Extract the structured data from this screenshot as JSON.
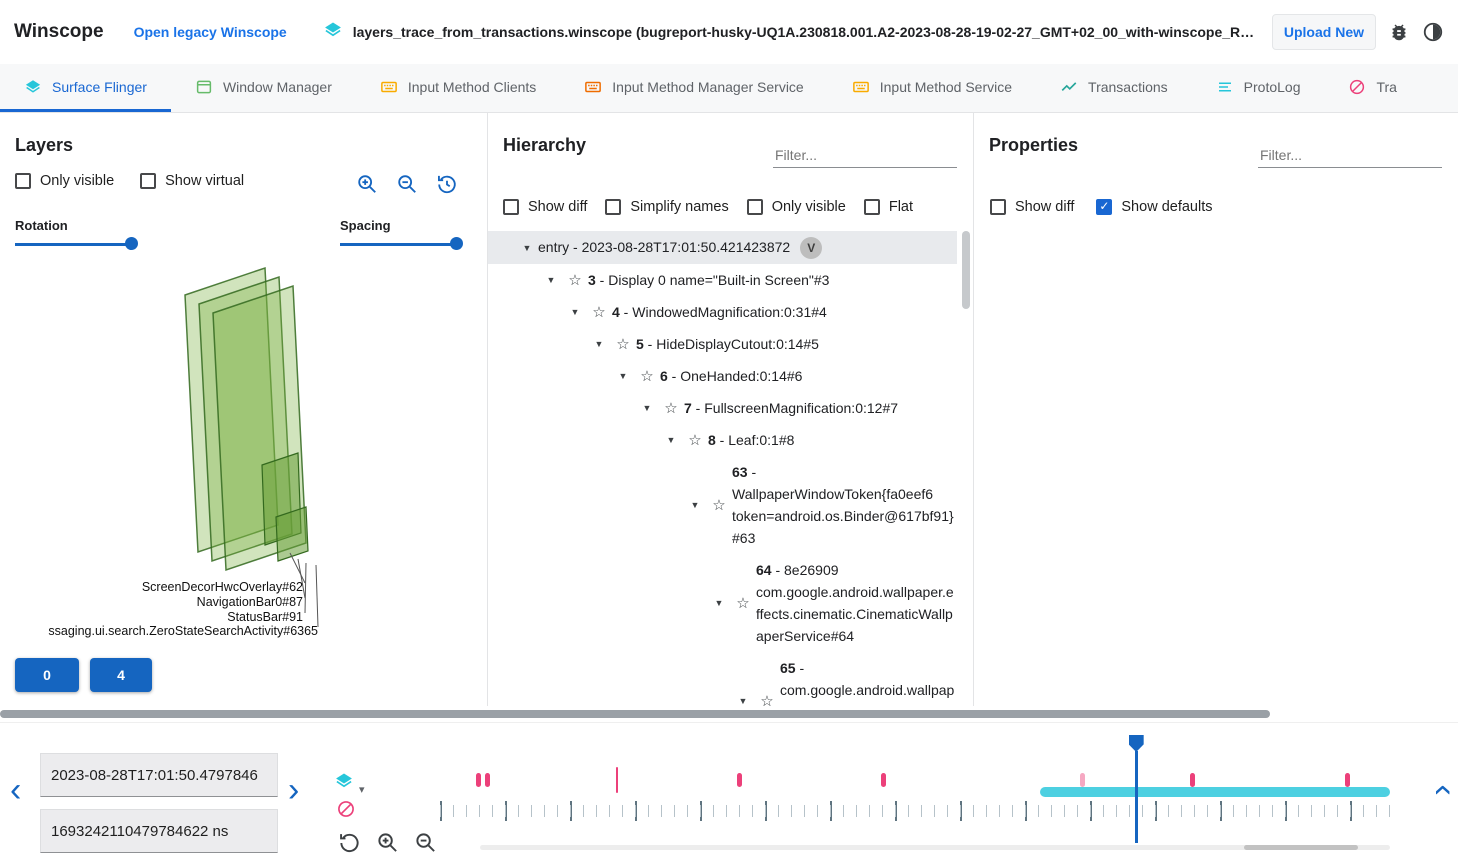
{
  "header": {
    "app_title": "Winscope",
    "legacy_link": "Open legacy Winscope",
    "trace_file": "layers_trace_from_transactions.winscope (bugreport-husky-UQ1A.230818.001.A2-2023-08-28-19-02-27_GMT+02_00_with-winscope_REDACTED.zip)",
    "upload_button": "Upload New"
  },
  "tabs": [
    {
      "label": "Surface Flinger",
      "icon": "layers-icon",
      "active": true
    },
    {
      "label": "Window Manager",
      "icon": "window-icon",
      "active": false
    },
    {
      "label": "Input Method Clients",
      "icon": "keyboard-icon",
      "active": false
    },
    {
      "label": "Input Method Manager Service",
      "icon": "keyboard-icon",
      "active": false
    },
    {
      "label": "Input Method Service",
      "icon": "keyboard-icon",
      "active": false
    },
    {
      "label": "Transactions",
      "icon": "chart-icon",
      "active": false
    },
    {
      "label": "ProtoLog",
      "icon": "list-icon",
      "active": false
    },
    {
      "label": "Tra",
      "icon": "slash-circle-icon",
      "active": false
    }
  ],
  "layers": {
    "title": "Layers",
    "checkboxes": [
      {
        "label": "Only visible",
        "checked": false
      },
      {
        "label": "Show virtual",
        "checked": false
      }
    ],
    "rotation_label": "Rotation",
    "spacing_label": "Spacing",
    "rotation_value_pct": 100,
    "spacing_value_pct": 100,
    "layer_labels": [
      "ScreenDecorHwcOverlay#62",
      "NavigationBar0#87",
      "StatusBar#91",
      "ssaging.ui.search.ZeroStateSearchActivity#6365"
    ],
    "display_buttons": [
      "0",
      "4"
    ]
  },
  "hierarchy": {
    "title": "Hierarchy",
    "filter_placeholder": "Filter...",
    "checkboxes": [
      {
        "label": "Show diff",
        "checked": false
      },
      {
        "label": "Simplify names",
        "checked": false
      },
      {
        "label": "Only visible",
        "checked": false
      },
      {
        "label": "Flat",
        "checked": false
      }
    ],
    "tree": [
      {
        "num": "",
        "rest": "entry - 2023-08-28T17:01:50.421423872",
        "badge": "V"
      },
      {
        "num": "3",
        "rest": " - Display 0 name=\"Built-in Screen\"#3"
      },
      {
        "num": "4",
        "rest": " - WindowedMagnification:0:31#4"
      },
      {
        "num": "5",
        "rest": " - HideDisplayCutout:0:14#5"
      },
      {
        "num": "6",
        "rest": " - OneHanded:0:14#6"
      },
      {
        "num": "7",
        "rest": " - FullscreenMagnification:0:12#7"
      },
      {
        "num": "8",
        "rest": " - Leaf:0:1#8"
      },
      {
        "num": "63",
        "rest": " - WallpaperWindowToken{fa0eef6 token=android.os.Binder@617bf91}#63"
      },
      {
        "num": "64",
        "rest": " - 8e26909 com.google.android.wallpaper.effects.cinematic.CinematicWallpaperService#64"
      },
      {
        "num": "65",
        "rest": " - com.google.android.wallpaper.effects.cinematic.CinematicWallpaperSer"
      }
    ]
  },
  "properties": {
    "title": "Properties",
    "filter_placeholder": "Filter...",
    "checkboxes": [
      {
        "label": "Show diff",
        "checked": false
      },
      {
        "label": "Show defaults",
        "checked": true
      }
    ]
  },
  "timeline": {
    "timestamp_human": "2023-08-28T17:01:50.4797846",
    "timestamp_ns": "1693242110479784622 ns",
    "markers": [
      {
        "pct": 5.7
      },
      {
        "pct": 6.7
      },
      {
        "pct": 20.1,
        "tall": true
      },
      {
        "pct": 32.5
      },
      {
        "pct": 47.3
      },
      {
        "pct": 67.7,
        "light": true
      },
      {
        "pct": 79.0
      },
      {
        "pct": 94.9
      }
    ],
    "range_start_pct": 63.6,
    "range_end_pct": 99.5,
    "cursor_pct": 73.3
  },
  "colors": {
    "accent_blue": "#1565c0",
    "link_blue": "#1a73e8",
    "teal": "#26c6da",
    "orange": "#f9ab00",
    "pink": "#ec407a",
    "layer_green": "#7cb342"
  }
}
